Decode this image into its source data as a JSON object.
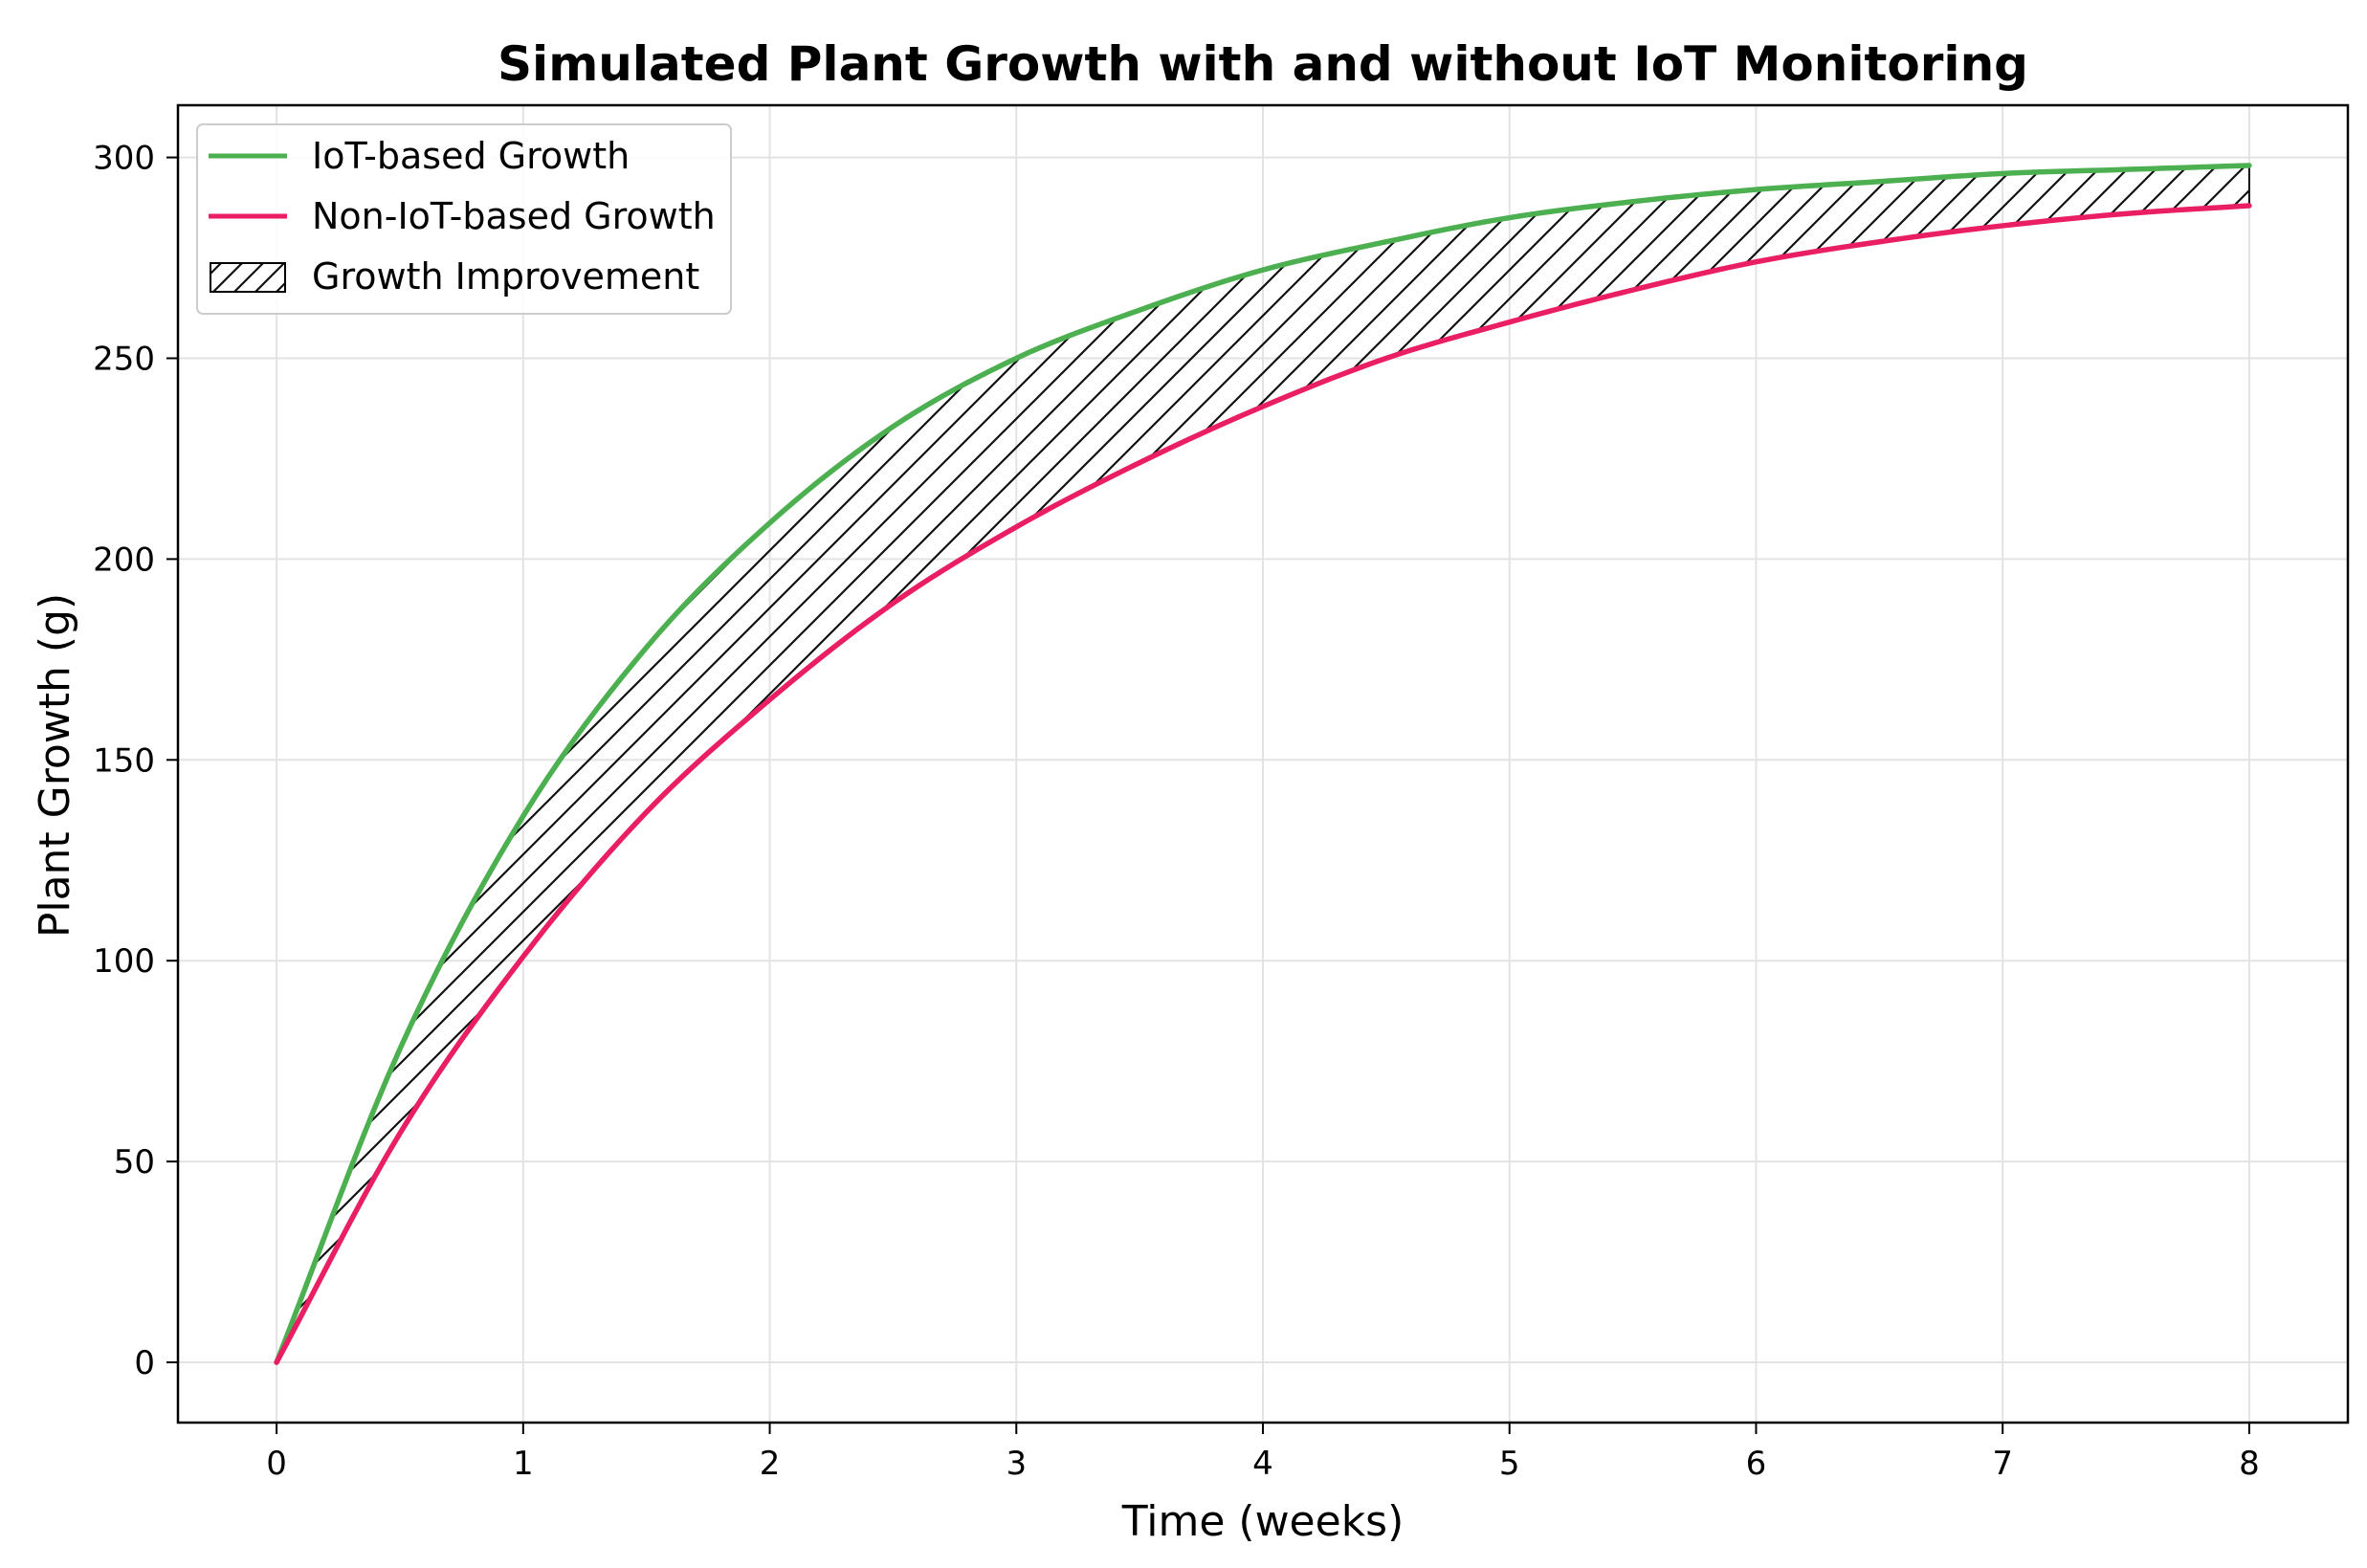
{
  "chart_data": {
    "type": "line",
    "title": "Simulated Plant Growth with and without IoT Monitoring",
    "xlabel": "Time (weeks)",
    "ylabel": "Plant Growth (g)",
    "xlim": [
      -0.4,
      8.4
    ],
    "ylim": [
      -15,
      313
    ],
    "xticks": [
      0,
      1,
      2,
      3,
      4,
      5,
      6,
      7,
      8
    ],
    "xtick_labels": [
      "0",
      "1",
      "2",
      "3",
      "4",
      "5",
      "6",
      "7",
      "8"
    ],
    "yticks": [
      0,
      50,
      100,
      150,
      200,
      250,
      300
    ],
    "ytick_labels": [
      "0",
      "50",
      "100",
      "150",
      "200",
      "250",
      "300"
    ],
    "grid": true,
    "legend_position": "top-left",
    "x": [
      0,
      0.5,
      1,
      1.5,
      2,
      2.5,
      3,
      3.5,
      4,
      4.5,
      5,
      5.5,
      6,
      6.5,
      7,
      7.5,
      8
    ],
    "series": [
      {
        "name": "IoT-based Growth",
        "color": "#4caf50",
        "values": [
          0,
          78,
          136,
          178,
          209,
          233,
          250,
          262,
          272,
          279,
          285,
          289,
          292,
          294,
          296,
          297,
          298
        ]
      },
      {
        "name": "Non-IoT-based Growth",
        "color": "#e91e63",
        "values": [
          0,
          57,
          101,
          137,
          165,
          189,
          208,
          224,
          238,
          250,
          259,
          267,
          274,
          279,
          283,
          286,
          288
        ]
      }
    ],
    "fill_between": {
      "name": "Growth Improvement",
      "hatch": "diagonal",
      "upper": "IoT-based Growth",
      "lower": "Non-IoT-based Growth"
    }
  }
}
